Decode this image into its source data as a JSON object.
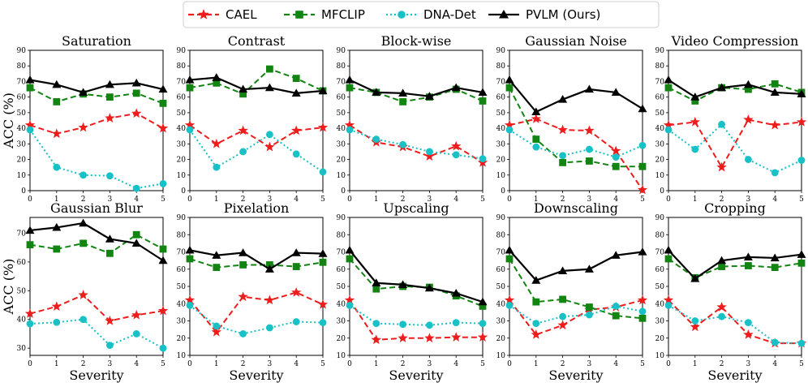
{
  "legend": [
    {
      "name": "CAEL",
      "color": "#ee1c1c",
      "marker": "star",
      "dash": "dashed"
    },
    {
      "name": "MFCLIP",
      "color": "#128412",
      "marker": "square",
      "dash": "dashed"
    },
    {
      "name": "DNA-Det",
      "color": "#17c1c6",
      "marker": "circle",
      "dash": "dotted"
    },
    {
      "name": "PVLM (Ours)",
      "color": "#000000",
      "marker": "triangle",
      "dash": "solid"
    }
  ],
  "chart_data": [
    {
      "type": "line",
      "title": "Saturation",
      "xlabel": "",
      "ylabel": "ACC (%)",
      "x": [
        0,
        1,
        2,
        3,
        4,
        5
      ],
      "ylim": [
        0,
        90
      ],
      "yticks": [
        0,
        10,
        20,
        30,
        40,
        50,
        60,
        70,
        80,
        90
      ],
      "series": [
        {
          "name": "CAEL",
          "values": [
            42,
            36.5,
            40.5,
            46.5,
            49.5,
            40
          ]
        },
        {
          "name": "MFCLIP",
          "values": [
            66,
            57,
            62,
            60,
            62.5,
            56
          ]
        },
        {
          "name": "DNA-Det",
          "values": [
            39,
            15,
            10,
            9.5,
            1.5,
            4.5
          ]
        },
        {
          "name": "PVLM (Ours)",
          "values": [
            71,
            68,
            63,
            68,
            69,
            65
          ]
        }
      ]
    },
    {
      "type": "line",
      "title": "Contrast",
      "xlabel": "",
      "ylabel": "",
      "x": [
        0,
        1,
        2,
        3,
        4,
        5
      ],
      "ylim": [
        0,
        90
      ],
      "yticks": [
        0,
        10,
        20,
        30,
        40,
        50,
        60,
        70,
        80,
        90
      ],
      "series": [
        {
          "name": "CAEL",
          "values": [
            42,
            30,
            38.5,
            28,
            38.5,
            40.5
          ]
        },
        {
          "name": "MFCLIP",
          "values": [
            66,
            69,
            62,
            78,
            72,
            64
          ]
        },
        {
          "name": "DNA-Det",
          "values": [
            39,
            15,
            25,
            36,
            23.5,
            12
          ]
        },
        {
          "name": "PVLM (Ours)",
          "values": [
            71,
            72.5,
            65,
            66,
            62.5,
            64
          ]
        }
      ]
    },
    {
      "type": "line",
      "title": "Block-wise",
      "xlabel": "",
      "ylabel": "",
      "x": [
        0,
        1,
        2,
        3,
        4,
        5
      ],
      "ylim": [
        0,
        90
      ],
      "yticks": [
        0,
        10,
        20,
        30,
        40,
        50,
        60,
        70,
        80,
        90
      ],
      "series": [
        {
          "name": "CAEL",
          "values": [
            42,
            31,
            28,
            22,
            28.5,
            18
          ]
        },
        {
          "name": "MFCLIP",
          "values": [
            66,
            63,
            57,
            60,
            65,
            57.5
          ]
        },
        {
          "name": "DNA-Det",
          "values": [
            39,
            33,
            29.5,
            25,
            23,
            20.5
          ]
        },
        {
          "name": "PVLM (Ours)",
          "values": [
            71,
            63,
            62.5,
            60.5,
            66,
            63
          ]
        }
      ]
    },
    {
      "type": "line",
      "title": "Gaussian Noise",
      "xlabel": "",
      "ylabel": "",
      "x": [
        0,
        1,
        2,
        3,
        4,
        5
      ],
      "ylim": [
        0,
        90
      ],
      "yticks": [
        0,
        10,
        20,
        30,
        40,
        50,
        60,
        70,
        80,
        90
      ],
      "series": [
        {
          "name": "CAEL",
          "values": [
            42,
            46,
            39,
            38.5,
            25.5,
            0.5
          ]
        },
        {
          "name": "MFCLIP",
          "values": [
            66,
            33,
            18,
            19,
            15.5,
            15.5
          ]
        },
        {
          "name": "DNA-Det",
          "values": [
            39,
            28,
            22.5,
            26.5,
            21.5,
            29
          ]
        },
        {
          "name": "PVLM (Ours)",
          "values": [
            71,
            50.5,
            58.5,
            65,
            63,
            52.5
          ]
        }
      ]
    },
    {
      "type": "line",
      "title": "Video Compression",
      "xlabel": "",
      "ylabel": "",
      "x": [
        0,
        1,
        2,
        3,
        4,
        5
      ],
      "ylim": [
        0,
        90
      ],
      "yticks": [
        0,
        10,
        20,
        30,
        40,
        50,
        60,
        70,
        80,
        90
      ],
      "series": [
        {
          "name": "CAEL",
          "values": [
            42,
            44,
            15,
            45.5,
            42,
            44
          ]
        },
        {
          "name": "MFCLIP",
          "values": [
            66,
            57.5,
            66,
            65,
            68.5,
            63
          ]
        },
        {
          "name": "DNA-Det",
          "values": [
            39,
            26.5,
            42.5,
            20,
            11.5,
            19.5
          ]
        },
        {
          "name": "PVLM (Ours)",
          "values": [
            71,
            60,
            66,
            68,
            63,
            62
          ]
        }
      ]
    },
    {
      "type": "line",
      "title": "Gaussian Blur",
      "xlabel": "Severity",
      "ylabel": "ACC (%)",
      "x": [
        0,
        1,
        2,
        3,
        4,
        5
      ],
      "ylim": [
        27.5,
        75.5
      ],
      "yticks": [
        30,
        40,
        50,
        60,
        70
      ],
      "series": [
        {
          "name": "CAEL",
          "values": [
            42,
            44.5,
            48.5,
            39.5,
            41.5,
            43
          ]
        },
        {
          "name": "MFCLIP",
          "values": [
            66,
            64.5,
            66.5,
            63,
            69.5,
            64.5
          ]
        },
        {
          "name": "DNA-Det",
          "values": [
            38.5,
            39,
            40,
            31,
            35,
            30
          ]
        },
        {
          "name": "PVLM (Ours)",
          "values": [
            71,
            72,
            73.5,
            68,
            66.5,
            60.5
          ]
        }
      ]
    },
    {
      "type": "line",
      "title": "Pixelation",
      "xlabel": "Severity",
      "ylabel": "",
      "x": [
        0,
        1,
        2,
        3,
        4,
        5
      ],
      "ylim": [
        10,
        90
      ],
      "yticks": [
        10,
        20,
        30,
        40,
        50,
        60,
        70,
        80,
        90
      ],
      "series": [
        {
          "name": "CAEL",
          "values": [
            42,
            23.5,
            44,
            42,
            46.5,
            39.5
          ]
        },
        {
          "name": "MFCLIP",
          "values": [
            66,
            61,
            62.5,
            62.5,
            61.5,
            64
          ]
        },
        {
          "name": "DNA-Det",
          "values": [
            39,
            27,
            22.5,
            26,
            29.5,
            29
          ]
        },
        {
          "name": "PVLM (Ours)",
          "values": [
            71,
            68,
            69.5,
            60,
            69.5,
            69
          ]
        }
      ]
    },
    {
      "type": "line",
      "title": "Upscaling",
      "xlabel": "Severity",
      "ylabel": "",
      "x": [
        0,
        1,
        2,
        3,
        4,
        5
      ],
      "ylim": [
        10,
        90
      ],
      "yticks": [
        10,
        20,
        30,
        40,
        50,
        60,
        70,
        80,
        90
      ],
      "series": [
        {
          "name": "CAEL",
          "values": [
            42,
            19,
            20,
            20,
            20.5,
            20.5
          ]
        },
        {
          "name": "MFCLIP",
          "values": [
            66,
            48.5,
            50,
            49.5,
            44.5,
            38.5
          ]
        },
        {
          "name": "DNA-Det",
          "values": [
            39,
            28.5,
            28,
            27.5,
            29,
            28.5
          ]
        },
        {
          "name": "PVLM (Ours)",
          "values": [
            71,
            52,
            51,
            49,
            46,
            41
          ]
        }
      ]
    },
    {
      "type": "line",
      "title": "Downscaling",
      "xlabel": "Severity",
      "ylabel": "",
      "x": [
        0,
        1,
        2,
        3,
        4,
        5
      ],
      "ylim": [
        10,
        90
      ],
      "yticks": [
        10,
        20,
        30,
        40,
        50,
        60,
        70,
        80,
        90
      ],
      "series": [
        {
          "name": "CAEL",
          "values": [
            42,
            22,
            27.5,
            36.5,
            38,
            42
          ]
        },
        {
          "name": "MFCLIP",
          "values": [
            66,
            41,
            42.5,
            38,
            33,
            31.5
          ]
        },
        {
          "name": "DNA-Det",
          "values": [
            39,
            28.5,
            32.5,
            33.5,
            38.5,
            35.5
          ]
        },
        {
          "name": "PVLM (Ours)",
          "values": [
            71,
            53.5,
            59,
            60,
            68,
            70
          ]
        }
      ]
    },
    {
      "type": "line",
      "title": "Cropping",
      "xlabel": "Severity",
      "ylabel": "",
      "x": [
        0,
        1,
        2,
        3,
        4,
        5
      ],
      "ylim": [
        10,
        90
      ],
      "yticks": [
        10,
        20,
        30,
        40,
        50,
        60,
        70,
        80,
        90
      ],
      "series": [
        {
          "name": "CAEL",
          "values": [
            42,
            26.5,
            38,
            22,
            17,
            17
          ]
        },
        {
          "name": "MFCLIP",
          "values": [
            66,
            55,
            61.5,
            62,
            61,
            63.5
          ]
        },
        {
          "name": "DNA-Det",
          "values": [
            39,
            30,
            32.5,
            29,
            17.5,
            17
          ]
        },
        {
          "name": "PVLM (Ours)",
          "values": [
            71,
            54.5,
            65,
            67,
            66.5,
            68.5
          ]
        }
      ]
    }
  ]
}
